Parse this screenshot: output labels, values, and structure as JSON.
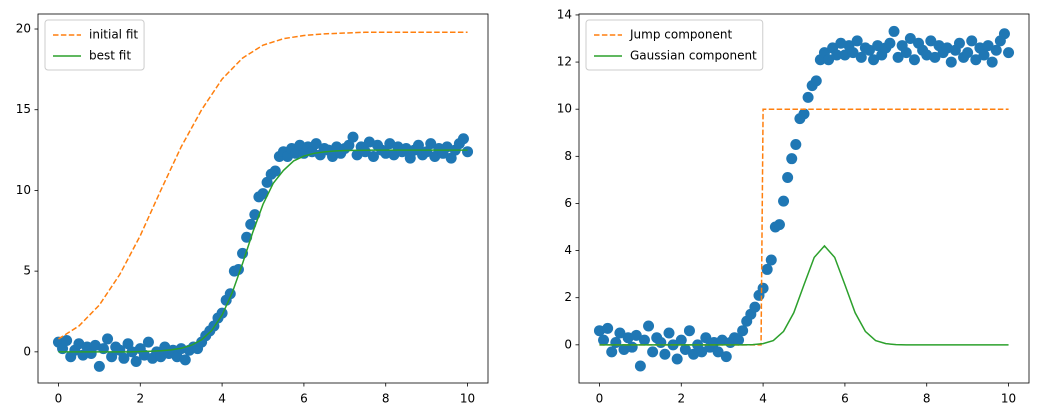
{
  "chart_data": [
    {
      "type": "line",
      "xlim": [
        -0.5,
        10.5
      ],
      "ylim": [
        -1.93,
        20.93
      ],
      "xticks": [
        0,
        2,
        4,
        6,
        8,
        10
      ],
      "yticks": [
        0,
        5,
        10,
        15,
        20
      ],
      "legend": "upper left",
      "series": [
        {
          "mark": "scatter",
          "color": "#1f77b4",
          "x": [
            0.0,
            0.1,
            0.2,
            0.3,
            0.4,
            0.5,
            0.6,
            0.7,
            0.8,
            0.9,
            1.0,
            1.1,
            1.2,
            1.3,
            1.4,
            1.5,
            1.6,
            1.7,
            1.8,
            1.9,
            2.0,
            2.1,
            2.2,
            2.3,
            2.4,
            2.5,
            2.6,
            2.7,
            2.8,
            2.9,
            3.0,
            3.1,
            3.2,
            3.3,
            3.4,
            3.5,
            3.6,
            3.7,
            3.8,
            3.9,
            4.0,
            4.1,
            4.2,
            4.3,
            4.4,
            4.5,
            4.6,
            4.7,
            4.8,
            4.9,
            5.0,
            5.1,
            5.2,
            5.3,
            5.4,
            5.5,
            5.6,
            5.7,
            5.8,
            5.9,
            6.0,
            6.1,
            6.2,
            6.3,
            6.4,
            6.5,
            6.6,
            6.7,
            6.8,
            6.9,
            7.0,
            7.1,
            7.2,
            7.3,
            7.4,
            7.5,
            7.6,
            7.7,
            7.8,
            7.9,
            8.0,
            8.1,
            8.2,
            8.3,
            8.4,
            8.5,
            8.6,
            8.7,
            8.8,
            8.9,
            9.0,
            9.1,
            9.2,
            9.3,
            9.4,
            9.5,
            9.6,
            9.7,
            9.8,
            9.9,
            10.0
          ],
          "values": [
            0.6,
            0.2,
            0.7,
            -0.3,
            0.1,
            0.5,
            -0.2,
            0.3,
            -0.1,
            0.4,
            -0.9,
            0.2,
            0.8,
            -0.3,
            0.3,
            0.1,
            -0.4,
            0.5,
            0.0,
            -0.6,
            0.2,
            -0.2,
            0.6,
            -0.4,
            0.0,
            -0.3,
            0.3,
            -0.1,
            0.1,
            -0.3,
            0.2,
            -0.5,
            0.1,
            0.3,
            0.2,
            0.6,
            1.0,
            1.3,
            1.6,
            2.1,
            2.4,
            3.2,
            3.6,
            5.0,
            5.1,
            6.1,
            7.1,
            7.9,
            8.5,
            9.6,
            9.8,
            10.5,
            11.0,
            11.2,
            12.1,
            12.4,
            12.1,
            12.6,
            12.3,
            12.8,
            12.3,
            12.7,
            12.4,
            12.9,
            12.2,
            12.6,
            12.5,
            12.1,
            12.7,
            12.3,
            12.6,
            12.8,
            13.3,
            12.2,
            12.7,
            12.4,
            13.0,
            12.1,
            12.8,
            12.5,
            12.3,
            12.9,
            12.2,
            12.7,
            12.4,
            12.6,
            12.0,
            12.5,
            12.8,
            12.2,
            12.4,
            12.9,
            12.1,
            12.6,
            12.3,
            12.7,
            12.0,
            12.5,
            12.9,
            13.2,
            12.4
          ]
        },
        {
          "mark": "line",
          "name": "initial fit",
          "color": "#ff7f0e",
          "dashed": true,
          "x": [
            0,
            0.5,
            1,
            1.5,
            2,
            2.5,
            3,
            3.5,
            4,
            4.5,
            5,
            5.5,
            6,
            6.5,
            7,
            7.5,
            8,
            8.5,
            9,
            9.5,
            10
          ],
          "values": [
            0.8,
            1.6,
            2.9,
            4.8,
            7.2,
            10.0,
            12.7,
            15.0,
            16.9,
            18.2,
            19.0,
            19.4,
            19.6,
            19.7,
            19.75,
            19.8,
            19.8,
            19.8,
            19.8,
            19.8,
            19.8
          ]
        },
        {
          "mark": "line",
          "name": "best fit",
          "color": "#2ca02c",
          "dashed": false,
          "x": [
            0,
            0.25,
            0.5,
            0.75,
            1,
            1.25,
            1.5,
            1.75,
            2,
            2.25,
            2.5,
            2.75,
            3,
            3.25,
            3.5,
            3.75,
            4,
            4.25,
            4.5,
            4.75,
            5,
            5.25,
            5.5,
            5.75,
            6,
            6.25,
            6.5,
            6.75,
            7,
            7.25,
            7.5,
            7.75,
            8,
            8.25,
            8.5,
            8.75,
            9,
            9.25,
            9.5,
            9.75,
            10
          ],
          "values": [
            0,
            0,
            0,
            0,
            0,
            0,
            0,
            0,
            0.02,
            0.04,
            0.07,
            0.12,
            0.22,
            0.41,
            0.75,
            1.33,
            2.28,
            3.68,
            5.47,
            7.41,
            9.14,
            10.44,
            11.24,
            11.83,
            12.13,
            12.3,
            12.39,
            12.44,
            12.47,
            12.48,
            12.49,
            12.5,
            12.5,
            12.5,
            12.5,
            12.5,
            12.5,
            12.5,
            12.5,
            12.5,
            12.5
          ]
        }
      ]
    },
    {
      "type": "line",
      "xlim": [
        -0.5,
        10.5
      ],
      "ylim": [
        -1.62,
        14.04
      ],
      "xticks": [
        0,
        2,
        4,
        6,
        8,
        10
      ],
      "yticks": [
        0,
        2,
        4,
        6,
        8,
        10,
        12,
        14
      ],
      "legend": "upper left",
      "series": [
        {
          "mark": "scatter",
          "color": "#1f77b4",
          "x": [
            0.0,
            0.1,
            0.2,
            0.3,
            0.4,
            0.5,
            0.6,
            0.7,
            0.8,
            0.9,
            1.0,
            1.1,
            1.2,
            1.3,
            1.4,
            1.5,
            1.6,
            1.7,
            1.8,
            1.9,
            2.0,
            2.1,
            2.2,
            2.3,
            2.4,
            2.5,
            2.6,
            2.7,
            2.8,
            2.9,
            3.0,
            3.1,
            3.2,
            3.3,
            3.4,
            3.5,
            3.6,
            3.7,
            3.8,
            3.9,
            4.0,
            4.1,
            4.2,
            4.3,
            4.4,
            4.5,
            4.6,
            4.7,
            4.8,
            4.9,
            5.0,
            5.1,
            5.2,
            5.3,
            5.4,
            5.5,
            5.6,
            5.7,
            5.8,
            5.9,
            6.0,
            6.1,
            6.2,
            6.3,
            6.4,
            6.5,
            6.6,
            6.7,
            6.8,
            6.9,
            7.0,
            7.1,
            7.2,
            7.3,
            7.4,
            7.5,
            7.6,
            7.7,
            7.8,
            7.9,
            8.0,
            8.1,
            8.2,
            8.3,
            8.4,
            8.5,
            8.6,
            8.7,
            8.8,
            8.9,
            9.0,
            9.1,
            9.2,
            9.3,
            9.4,
            9.5,
            9.6,
            9.7,
            9.8,
            9.9,
            10.0
          ],
          "values": [
            0.6,
            0.2,
            0.7,
            -0.3,
            0.1,
            0.5,
            -0.2,
            0.3,
            -0.1,
            0.4,
            -0.9,
            0.2,
            0.8,
            -0.3,
            0.3,
            0.1,
            -0.4,
            0.5,
            0.0,
            -0.6,
            0.2,
            -0.2,
            0.6,
            -0.4,
            0.0,
            -0.3,
            0.3,
            -0.1,
            0.1,
            -0.3,
            0.2,
            -0.5,
            0.1,
            0.3,
            0.2,
            0.6,
            1.0,
            1.3,
            1.6,
            2.1,
            2.4,
            3.2,
            3.6,
            5.0,
            5.1,
            6.1,
            7.1,
            7.9,
            8.5,
            9.6,
            9.8,
            10.5,
            11.0,
            11.2,
            12.1,
            12.4,
            12.1,
            12.6,
            12.3,
            12.8,
            12.3,
            12.7,
            12.4,
            12.9,
            12.2,
            12.6,
            12.5,
            12.1,
            12.7,
            12.3,
            12.6,
            12.8,
            13.3,
            12.2,
            12.7,
            12.4,
            13.0,
            12.1,
            12.8,
            12.5,
            12.3,
            12.9,
            12.2,
            12.7,
            12.4,
            12.6,
            12.0,
            12.5,
            12.8,
            12.2,
            12.4,
            12.9,
            12.1,
            12.6,
            12.3,
            12.7,
            12.0,
            12.5,
            12.9,
            13.2,
            12.4
          ]
        },
        {
          "mark": "line",
          "name": "Jump component",
          "color": "#ff7f0e",
          "dashed": true,
          "x": [
            0,
            3.95,
            4.0,
            10
          ],
          "values": [
            0,
            0,
            10,
            10
          ]
        },
        {
          "mark": "line",
          "name": "Gaussian component",
          "color": "#2ca02c",
          "dashed": false,
          "x": [
            0,
            0.25,
            0.5,
            0.75,
            1,
            1.25,
            1.5,
            1.75,
            2,
            2.25,
            2.5,
            2.75,
            3,
            3.25,
            3.5,
            3.75,
            4,
            4.25,
            4.5,
            4.75,
            5,
            5.25,
            5.5,
            5.75,
            6,
            6.25,
            6.5,
            6.75,
            7,
            7.25,
            7.5,
            7.75,
            8,
            8.25,
            8.5,
            8.75,
            9,
            9.25,
            9.5,
            9.75,
            10
          ],
          "values": [
            0,
            0,
            0,
            0,
            0,
            0,
            0,
            0,
            0,
            0,
            0,
            0,
            0,
            0,
            0,
            0.01,
            0.05,
            0.18,
            0.57,
            1.36,
            2.55,
            3.71,
            4.2,
            3.71,
            2.55,
            1.36,
            0.57,
            0.18,
            0.05,
            0.01,
            0,
            0,
            0,
            0,
            0,
            0,
            0,
            0,
            0,
            0,
            0
          ]
        }
      ]
    }
  ]
}
